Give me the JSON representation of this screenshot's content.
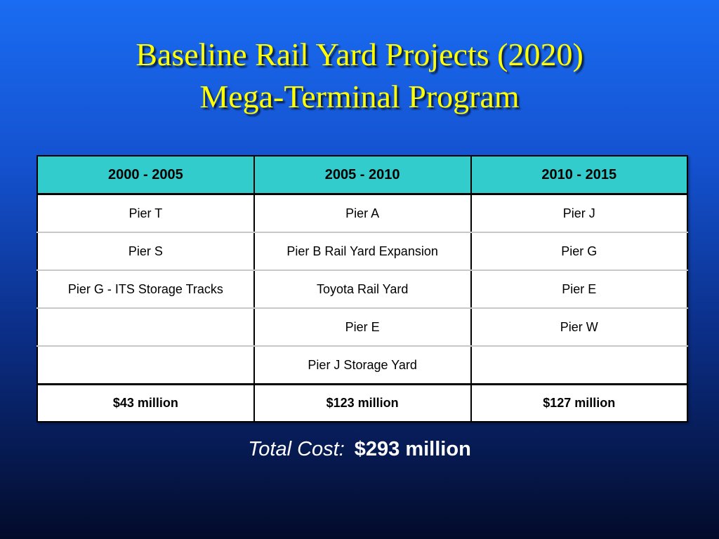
{
  "title": {
    "line1": "Baseline Rail Yard Projects (2020)",
    "line2": "Mega-Terminal Program"
  },
  "table": {
    "headers": [
      "2000 - 2005",
      "2005 - 2010",
      "2010 - 2015"
    ],
    "rows": [
      [
        "Pier T",
        "Pier A",
        "Pier J"
      ],
      [
        "Pier S",
        "Pier B Rail Yard Expansion",
        "Pier G"
      ],
      [
        "Pier G - ITS Storage Tracks",
        "Toyota Rail Yard",
        "Pier E"
      ],
      [
        "",
        "Pier E",
        "Pier W"
      ],
      [
        "",
        "Pier J Storage Yard",
        ""
      ]
    ],
    "totals": [
      "$43 million",
      "$123 million",
      "$127 million"
    ]
  },
  "total_cost": {
    "label": "Total Cost:",
    "value": "$293 million"
  },
  "colors": {
    "title_text": "#ffff00",
    "header_fill": "#33cccc",
    "background_top": "#1a6cf2",
    "background_bottom": "#030b2a"
  }
}
